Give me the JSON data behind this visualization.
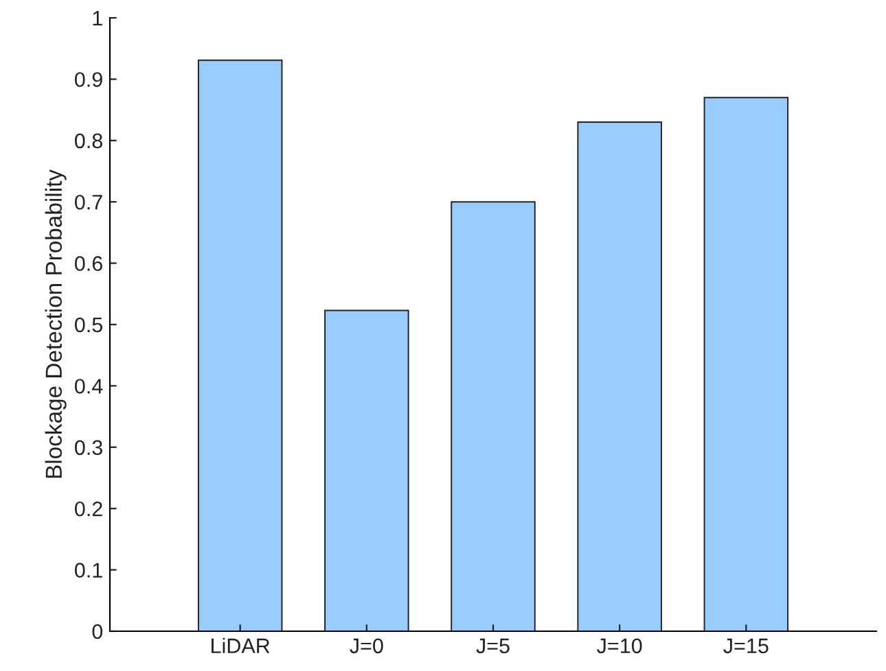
{
  "chart_data": {
    "type": "bar",
    "ylabel": "Blockage Detection Probability",
    "categories": [
      "LiDAR",
      "J=0",
      "J=5",
      "J=10",
      "J=15"
    ],
    "values": [
      0.931,
      0.523,
      0.7,
      0.83,
      0.87
    ],
    "color": "#99ccff",
    "ylim": [
      0,
      1
    ],
    "yticks": [
      0,
      0.1,
      0.2,
      0.3,
      0.4,
      0.5,
      0.6,
      0.7,
      0.8,
      0.9,
      1
    ],
    "grid": false
  }
}
